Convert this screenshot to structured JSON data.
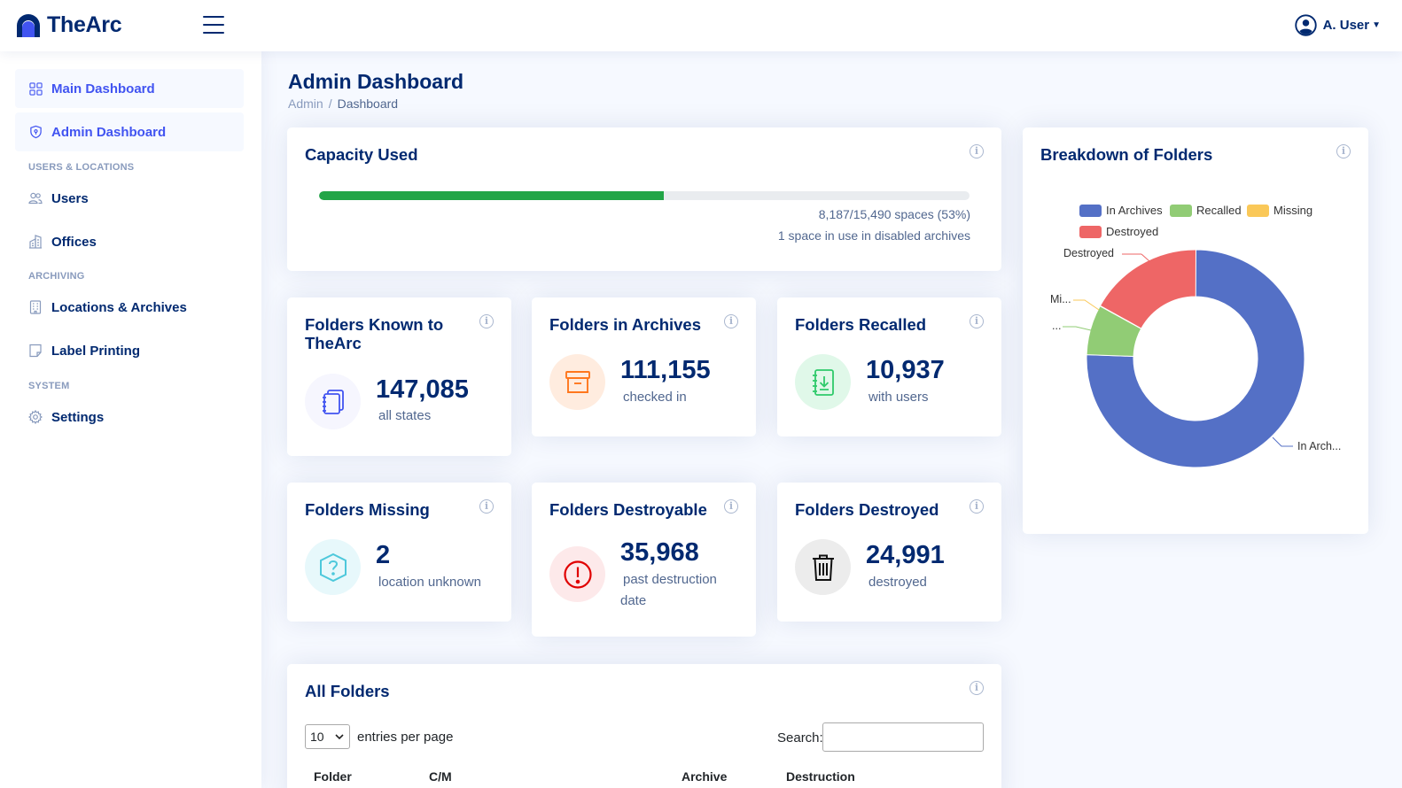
{
  "header": {
    "app_name": "TheArc",
    "user_name": "A. User"
  },
  "sidebar": {
    "items": [
      {
        "label": "Main Dashboard",
        "icon": "grid-icon",
        "active": true
      },
      {
        "label": "Admin Dashboard",
        "icon": "shield-icon",
        "active": true
      },
      {
        "label": "Users",
        "icon": "users-icon"
      },
      {
        "label": "Offices",
        "icon": "building-icon"
      },
      {
        "label": "Locations & Archives",
        "icon": "archive-building-icon"
      },
      {
        "label": "Label Printing",
        "icon": "label-icon"
      },
      {
        "label": "Settings",
        "icon": "gear-icon"
      }
    ],
    "headings": [
      "USERS & LOCATIONS",
      "ARCHIVING",
      "SYSTEM"
    ]
  },
  "page": {
    "title": "Admin Dashboard",
    "breadcrumb": [
      "Admin",
      "Dashboard"
    ]
  },
  "capacity": {
    "title": "Capacity Used",
    "fraction_used": 0.53,
    "spaces_text": "8,187/15,490 spaces (53%)",
    "disabled_text": "1 space in use in disabled archives",
    "fill_color": "#22a547"
  },
  "stats": {
    "known": {
      "title": "Folders Known to TheArc",
      "value": "147,085",
      "sub": "all states",
      "icon": "notebook-icon"
    },
    "archives": {
      "title": "Folders in Archives",
      "value": "111,155",
      "sub": "checked in",
      "icon": "archive-box-icon"
    },
    "recalled": {
      "title": "Folders Recalled",
      "value": "10,937",
      "sub": "with users",
      "icon": "download-notebook-icon"
    },
    "missing": {
      "title": "Folders Missing",
      "value": "2",
      "sub": "location unknown",
      "icon": "question-icon"
    },
    "destroyable": {
      "title": "Folders Destroyable",
      "value": "35,968",
      "sub": "past destruction date",
      "icon": "alert-circle-icon"
    },
    "destroyed": {
      "title": "Folders Destroyed",
      "value": "24,991",
      "sub": "destroyed",
      "icon": "trash-icon"
    }
  },
  "breakdown": {
    "title": "Breakdown of Folders",
    "legend": [
      "In Archives",
      "Recalled",
      "Missing",
      "Destroyed"
    ],
    "labels": {
      "destroyed": "Destroyed",
      "missing": "Mi...",
      "recalled": "...",
      "archives": "In Arch..."
    }
  },
  "chart_data": {
    "type": "pie",
    "title": "Breakdown of Folders",
    "categories": [
      "In Archives",
      "Recalled",
      "Missing",
      "Destroyed"
    ],
    "values": [
      111155,
      10937,
      2,
      24991
    ],
    "colors": [
      "#5470c6",
      "#91cc75",
      "#fac858",
      "#ee6666"
    ],
    "legend_position": "top"
  },
  "all_folders": {
    "title": "All Folders",
    "page_size": "10",
    "entries_label": "entries per page",
    "search_label": "Search:",
    "columns": [
      "Folder",
      "C/M",
      "Archive",
      "Destruction"
    ]
  }
}
